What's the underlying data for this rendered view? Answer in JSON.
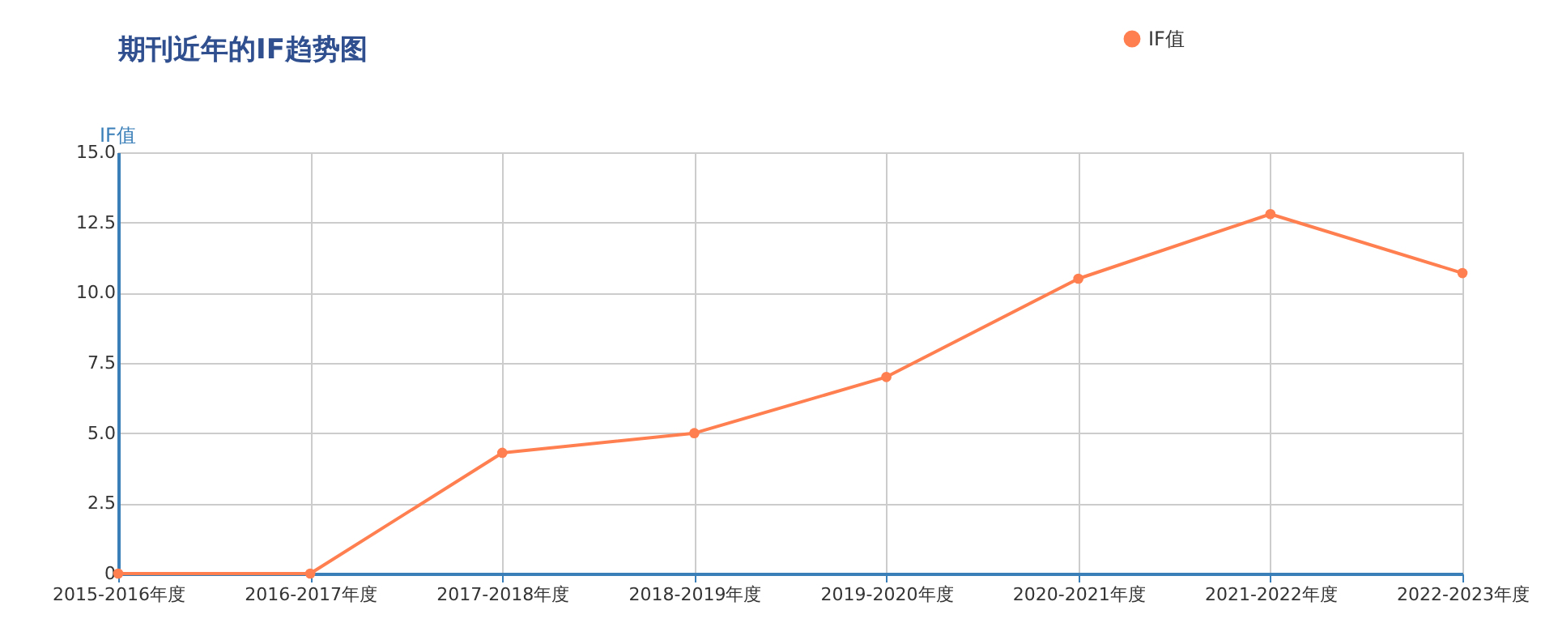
{
  "chart_data": {
    "type": "line",
    "title": "期刊近年的IF趋势图",
    "ylabel": "IF值",
    "categories": [
      "2015-2016年度",
      "2016-2017年度",
      "2017-2018年度",
      "2018-2019年度",
      "2019-2020年度",
      "2020-2021年度",
      "2021-2022年度",
      "2022-2023年度"
    ],
    "series": [
      {
        "name": "IF值",
        "color": "#ff7f50",
        "values": [
          0,
          0,
          4.3,
          5.0,
          7.0,
          10.5,
          12.8,
          10.7
        ]
      }
    ],
    "ylim": [
      0,
      15
    ],
    "yticks": [
      0,
      2.5,
      {
        "value": 5,
        "label": "5.0"
      },
      7.5,
      {
        "value": 10,
        "label": "10.0"
      },
      12.5,
      {
        "value": 15,
        "label": "15.0"
      }
    ],
    "grid": true,
    "legend": "top",
    "marker": "circle",
    "line_style": "solid"
  }
}
